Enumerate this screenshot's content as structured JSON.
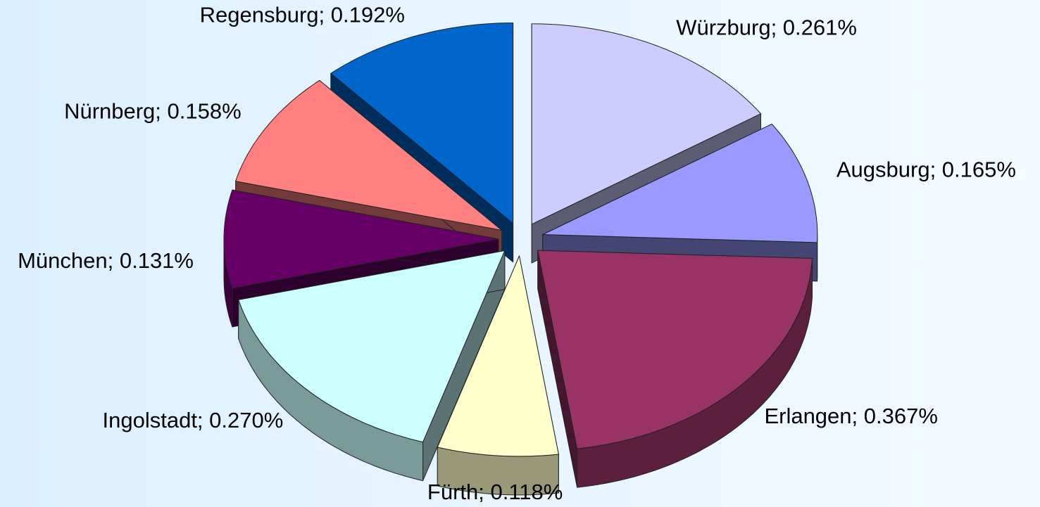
{
  "chart_data": {
    "type": "pie3d",
    "values": [
      0.261,
      0.165,
      0.367,
      0.118,
      0.27,
      0.131,
      0.158,
      0.192
    ],
    "value_labels": [
      "Würzburg; 0.261%",
      "Augsburg; 0.165%",
      "Erlangen; 0.367%",
      "Fürth; 0.118%",
      "Ingolstadt; 0.270%",
      "München; 0.131%",
      "Nürnberg; 0.158%",
      "Regensburg; 0.192%"
    ],
    "colors": [
      "#ccccff",
      "#9999ff",
      "#993366",
      "#ffffcc",
      "#ccffff",
      "#660066",
      "#ff8080",
      "#0066cc"
    ]
  }
}
